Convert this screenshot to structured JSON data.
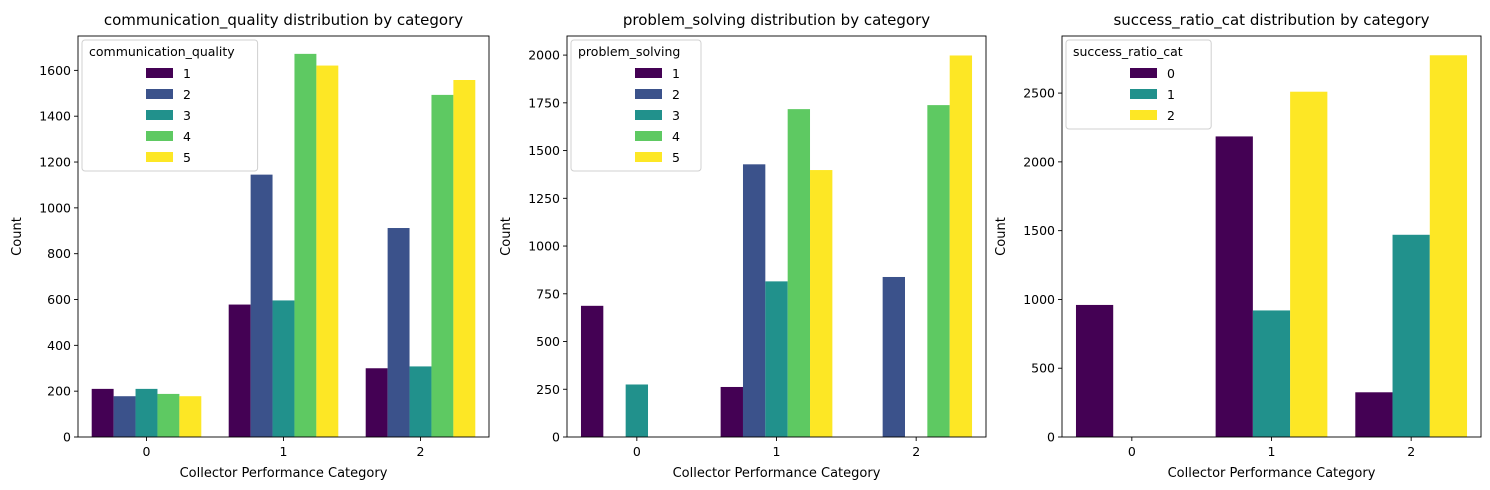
{
  "chart_data": [
    {
      "type": "bar",
      "title": "communication_quality distribution by category",
      "xlabel": "Collector Performance Category",
      "ylabel": "Count",
      "categories": [
        "0",
        "1",
        "2"
      ],
      "ylim": [
        0,
        1750
      ],
      "yticks": [
        0,
        200,
        400,
        600,
        800,
        1000,
        1200,
        1400,
        1600
      ],
      "legend_title": "communication_quality",
      "legend_position": "top-left",
      "series": [
        {
          "name": "1",
          "color": "#440154",
          "values": [
            210,
            578,
            300
          ]
        },
        {
          "name": "2",
          "color": "#3b528b",
          "values": [
            178,
            1145,
            912
          ]
        },
        {
          "name": "3",
          "color": "#21918c",
          "values": [
            210,
            596,
            308
          ]
        },
        {
          "name": "4",
          "color": "#5ec962",
          "values": [
            188,
            1672,
            1493
          ]
        },
        {
          "name": "5",
          "color": "#fde725",
          "values": [
            178,
            1621,
            1558
          ]
        }
      ]
    },
    {
      "type": "bar",
      "title": "problem_solving distribution by category",
      "xlabel": "Collector Performance Category",
      "ylabel": "Count",
      "categories": [
        "0",
        "1",
        "2"
      ],
      "ylim": [
        0,
        2100
      ],
      "yticks": [
        0,
        250,
        500,
        750,
        1000,
        1250,
        1500,
        1750,
        2000
      ],
      "legend_title": "problem_solving",
      "legend_position": "top-left",
      "series": [
        {
          "name": "1",
          "color": "#440154",
          "values": [
            687,
            262,
            0
          ]
        },
        {
          "name": "2",
          "color": "#3b528b",
          "values": [
            0,
            1428,
            838
          ]
        },
        {
          "name": "3",
          "color": "#21918c",
          "values": [
            275,
            815,
            0
          ]
        },
        {
          "name": "4",
          "color": "#5ec962",
          "values": [
            0,
            1717,
            1738
          ]
        },
        {
          "name": "5",
          "color": "#fde725",
          "values": [
            0,
            1398,
            1998
          ]
        }
      ]
    },
    {
      "type": "bar",
      "title": "success_ratio_cat distribution by category",
      "xlabel": "Collector Performance Category",
      "ylabel": "Count",
      "categories": [
        "0",
        "1",
        "2"
      ],
      "ylim": [
        0,
        2915
      ],
      "yticks": [
        0,
        500,
        1000,
        1500,
        2000,
        2500
      ],
      "legend_title": "success_ratio_cat",
      "legend_position": "top-left",
      "series": [
        {
          "name": "0",
          "color": "#440154",
          "values": [
            960,
            2185,
            325
          ]
        },
        {
          "name": "1",
          "color": "#21918c",
          "values": [
            0,
            920,
            1470
          ]
        },
        {
          "name": "2",
          "color": "#fde725",
          "values": [
            0,
            2510,
            2775
          ]
        }
      ]
    }
  ]
}
